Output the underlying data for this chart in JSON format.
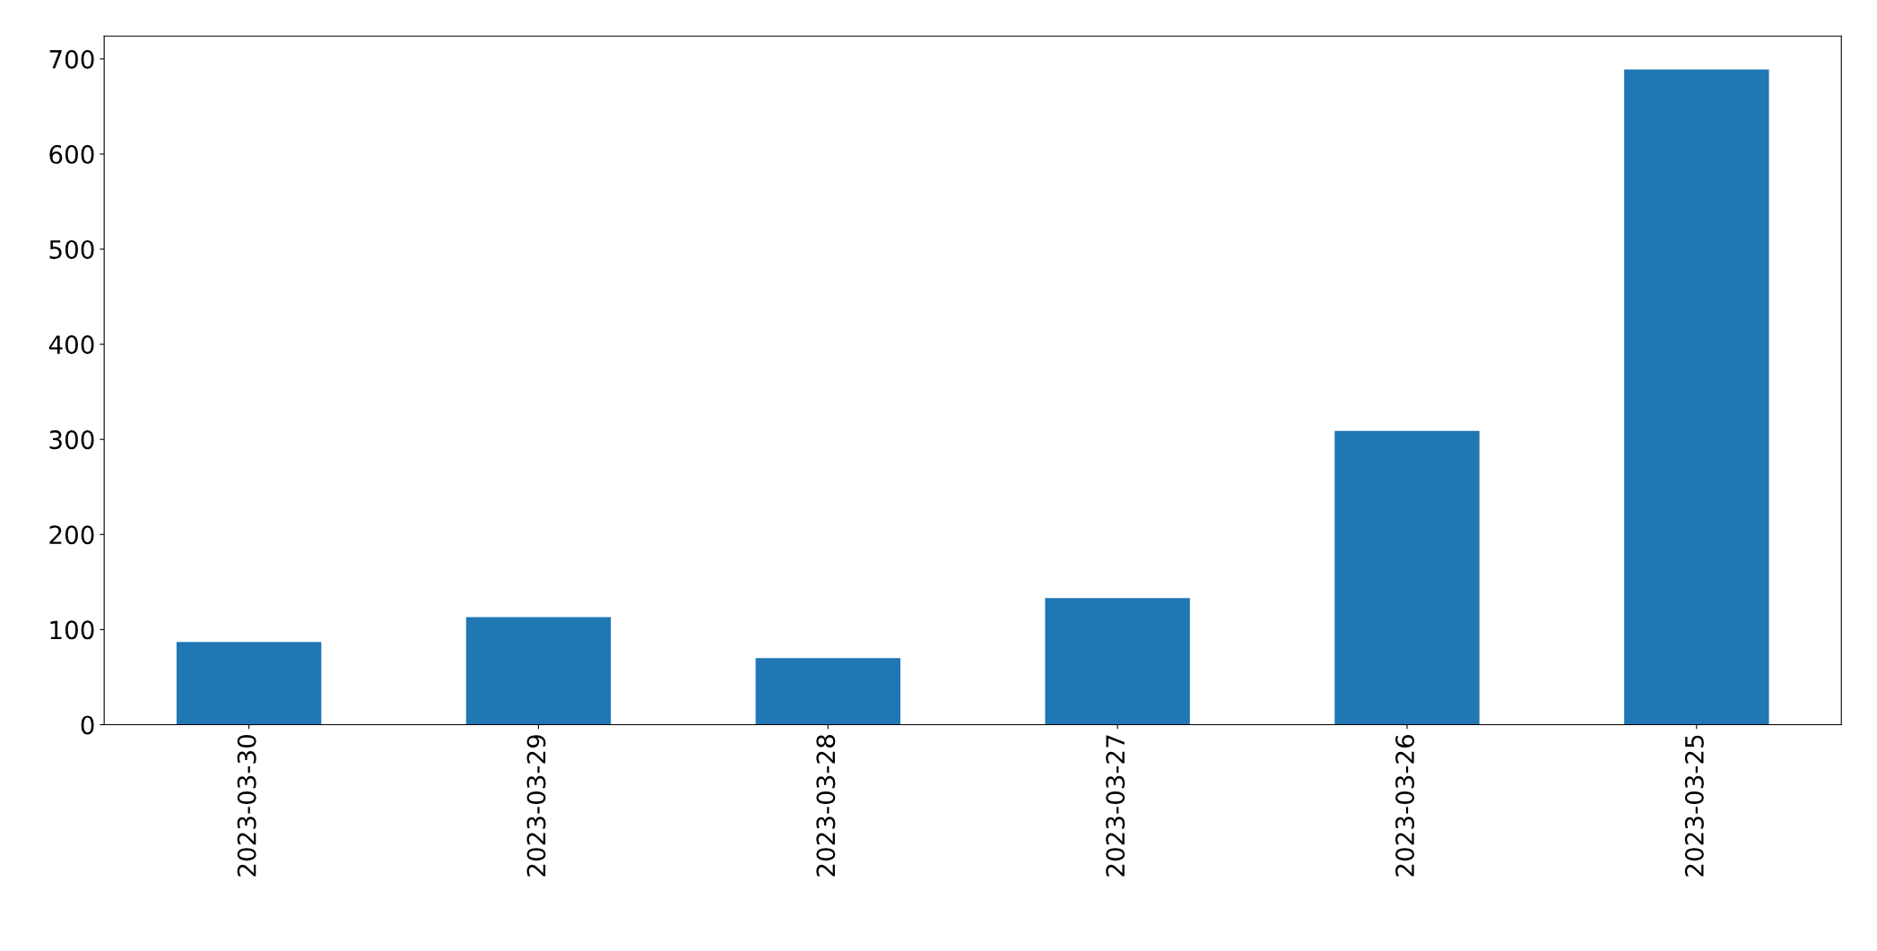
{
  "chart_data": {
    "type": "bar",
    "categories": [
      "2023-03-30",
      "2023-03-29",
      "2023-03-28",
      "2023-03-27",
      "2023-03-26",
      "2023-03-25"
    ],
    "values": [
      87,
      113,
      70,
      133,
      309,
      689
    ],
    "color": "#1f77b4",
    "ylim": [
      0,
      724
    ],
    "yticks": [
      0,
      100,
      200,
      300,
      400,
      500,
      600,
      700
    ],
    "grid": false,
    "legend": false
  }
}
